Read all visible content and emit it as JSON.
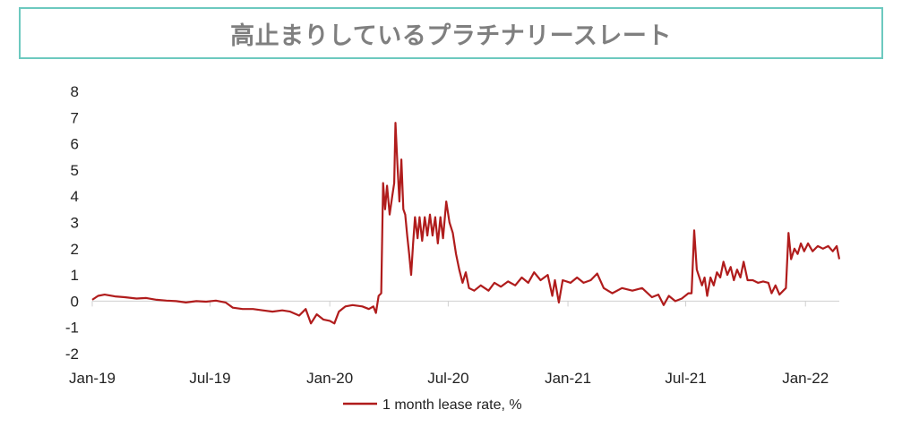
{
  "title": "高止まりしているプラチナリースレート",
  "chart_data": {
    "type": "line",
    "title": "高止まりしているプラチナリースレート",
    "xlabel": "",
    "ylabel": "",
    "ylim": [
      -2,
      8
    ],
    "y_ticks": [
      -2,
      -1,
      0,
      1,
      2,
      3,
      4,
      5,
      6,
      7,
      8
    ],
    "x_ticks": [
      "Jan-19",
      "Jul-19",
      "Jan-20",
      "Jul-20",
      "Jan-21",
      "Jul-21",
      "Jan-22"
    ],
    "grid": false,
    "legend_position": "bottom",
    "color": "#b01c1c",
    "series": [
      {
        "name": "1 month lease rate, %",
        "points": [
          [
            "2019-01-01",
            0.05
          ],
          [
            "2019-01-10",
            0.2
          ],
          [
            "2019-01-20",
            0.25
          ],
          [
            "2019-02-05",
            0.18
          ],
          [
            "2019-02-20",
            0.15
          ],
          [
            "2019-03-10",
            0.1
          ],
          [
            "2019-03-25",
            0.12
          ],
          [
            "2019-04-10",
            0.05
          ],
          [
            "2019-04-25",
            0.02
          ],
          [
            "2019-05-10",
            0.0
          ],
          [
            "2019-05-25",
            -0.05
          ],
          [
            "2019-06-10",
            0.0
          ],
          [
            "2019-06-25",
            -0.02
          ],
          [
            "2019-07-10",
            0.02
          ],
          [
            "2019-07-25",
            -0.05
          ],
          [
            "2019-08-05",
            -0.25
          ],
          [
            "2019-08-20",
            -0.3
          ],
          [
            "2019-09-05",
            -0.3
          ],
          [
            "2019-09-20",
            -0.35
          ],
          [
            "2019-10-05",
            -0.4
          ],
          [
            "2019-10-20",
            -0.35
          ],
          [
            "2019-11-01",
            -0.4
          ],
          [
            "2019-11-15",
            -0.55
          ],
          [
            "2019-11-25",
            -0.3
          ],
          [
            "2019-12-03",
            -0.85
          ],
          [
            "2019-12-12",
            -0.5
          ],
          [
            "2019-12-22",
            -0.7
          ],
          [
            "2020-01-01",
            -0.75
          ],
          [
            "2020-01-08",
            -0.85
          ],
          [
            "2020-01-15",
            -0.4
          ],
          [
            "2020-01-25",
            -0.2
          ],
          [
            "2020-02-05",
            -0.15
          ],
          [
            "2020-02-20",
            -0.2
          ],
          [
            "2020-03-01",
            -0.3
          ],
          [
            "2020-03-08",
            -0.2
          ],
          [
            "2020-03-12",
            -0.45
          ],
          [
            "2020-03-16",
            0.2
          ],
          [
            "2020-03-20",
            0.3
          ],
          [
            "2020-03-23",
            4.5
          ],
          [
            "2020-03-26",
            3.5
          ],
          [
            "2020-03-29",
            4.4
          ],
          [
            "2020-04-02",
            3.3
          ],
          [
            "2020-04-06",
            4.0
          ],
          [
            "2020-04-09",
            4.5
          ],
          [
            "2020-04-11",
            6.8
          ],
          [
            "2020-04-14",
            5.2
          ],
          [
            "2020-04-17",
            3.8
          ],
          [
            "2020-04-20",
            5.4
          ],
          [
            "2020-04-23",
            3.5
          ],
          [
            "2020-04-26",
            3.3
          ],
          [
            "2020-04-29",
            2.5
          ],
          [
            "2020-05-02",
            1.8
          ],
          [
            "2020-05-05",
            1.0
          ],
          [
            "2020-05-08",
            2.2
          ],
          [
            "2020-05-11",
            3.2
          ],
          [
            "2020-05-15",
            2.4
          ],
          [
            "2020-05-18",
            3.2
          ],
          [
            "2020-05-22",
            2.3
          ],
          [
            "2020-05-26",
            3.2
          ],
          [
            "2020-05-30",
            2.5
          ],
          [
            "2020-06-03",
            3.3
          ],
          [
            "2020-06-07",
            2.5
          ],
          [
            "2020-06-11",
            3.2
          ],
          [
            "2020-06-15",
            2.2
          ],
          [
            "2020-06-19",
            3.2
          ],
          [
            "2020-06-23",
            2.4
          ],
          [
            "2020-06-28",
            3.8
          ],
          [
            "2020-07-03",
            3.0
          ],
          [
            "2020-07-08",
            2.6
          ],
          [
            "2020-07-13",
            1.8
          ],
          [
            "2020-07-18",
            1.2
          ],
          [
            "2020-07-23",
            0.7
          ],
          [
            "2020-07-28",
            1.1
          ],
          [
            "2020-08-02",
            0.5
          ],
          [
            "2020-08-10",
            0.4
          ],
          [
            "2020-08-20",
            0.6
          ],
          [
            "2020-09-01",
            0.4
          ],
          [
            "2020-09-10",
            0.7
          ],
          [
            "2020-09-20",
            0.55
          ],
          [
            "2020-10-01",
            0.75
          ],
          [
            "2020-10-12",
            0.6
          ],
          [
            "2020-10-22",
            0.9
          ],
          [
            "2020-11-01",
            0.7
          ],
          [
            "2020-11-10",
            1.1
          ],
          [
            "2020-11-20",
            0.8
          ],
          [
            "2020-12-01",
            1.0
          ],
          [
            "2020-12-08",
            0.2
          ],
          [
            "2020-12-12",
            0.8
          ],
          [
            "2020-12-18",
            -0.05
          ],
          [
            "2020-12-24",
            0.8
          ],
          [
            "2021-01-05",
            0.7
          ],
          [
            "2021-01-15",
            0.9
          ],
          [
            "2021-01-25",
            0.7
          ],
          [
            "2021-02-05",
            0.8
          ],
          [
            "2021-02-15",
            1.05
          ],
          [
            "2021-02-25",
            0.5
          ],
          [
            "2021-03-10",
            0.3
          ],
          [
            "2021-03-25",
            0.5
          ],
          [
            "2021-04-10",
            0.4
          ],
          [
            "2021-04-25",
            0.5
          ],
          [
            "2021-05-10",
            0.15
          ],
          [
            "2021-05-20",
            0.25
          ],
          [
            "2021-05-28",
            -0.15
          ],
          [
            "2021-06-05",
            0.2
          ],
          [
            "2021-06-15",
            0.0
          ],
          [
            "2021-06-25",
            0.1
          ],
          [
            "2021-07-05",
            0.3
          ],
          [
            "2021-07-10",
            0.3
          ],
          [
            "2021-07-14",
            2.7
          ],
          [
            "2021-07-18",
            1.2
          ],
          [
            "2021-07-22",
            0.9
          ],
          [
            "2021-07-26",
            0.6
          ],
          [
            "2021-07-30",
            0.9
          ],
          [
            "2021-08-03",
            0.2
          ],
          [
            "2021-08-08",
            0.9
          ],
          [
            "2021-08-13",
            0.6
          ],
          [
            "2021-08-18",
            1.1
          ],
          [
            "2021-08-23",
            0.9
          ],
          [
            "2021-08-28",
            1.5
          ],
          [
            "2021-09-03",
            1.0
          ],
          [
            "2021-09-08",
            1.3
          ],
          [
            "2021-09-13",
            0.8
          ],
          [
            "2021-09-18",
            1.2
          ],
          [
            "2021-09-23",
            0.9
          ],
          [
            "2021-09-28",
            1.5
          ],
          [
            "2021-10-04",
            0.8
          ],
          [
            "2021-10-12",
            0.8
          ],
          [
            "2021-10-20",
            0.7
          ],
          [
            "2021-10-28",
            0.75
          ],
          [
            "2021-11-05",
            0.7
          ],
          [
            "2021-11-10",
            0.3
          ],
          [
            "2021-11-16",
            0.6
          ],
          [
            "2021-11-22",
            0.25
          ],
          [
            "2021-11-28",
            0.4
          ],
          [
            "2021-12-02",
            0.5
          ],
          [
            "2021-12-06",
            2.6
          ],
          [
            "2021-12-10",
            1.6
          ],
          [
            "2021-12-15",
            2.0
          ],
          [
            "2021-12-20",
            1.8
          ],
          [
            "2021-12-25",
            2.2
          ],
          [
            "2021-12-30",
            1.9
          ],
          [
            "2022-01-05",
            2.2
          ],
          [
            "2022-01-12",
            1.9
          ],
          [
            "2022-01-20",
            2.1
          ],
          [
            "2022-01-28",
            2.0
          ],
          [
            "2022-02-05",
            2.1
          ],
          [
            "2022-02-12",
            1.9
          ],
          [
            "2022-02-18",
            2.1
          ],
          [
            "2022-02-22",
            1.6
          ]
        ]
      }
    ]
  }
}
